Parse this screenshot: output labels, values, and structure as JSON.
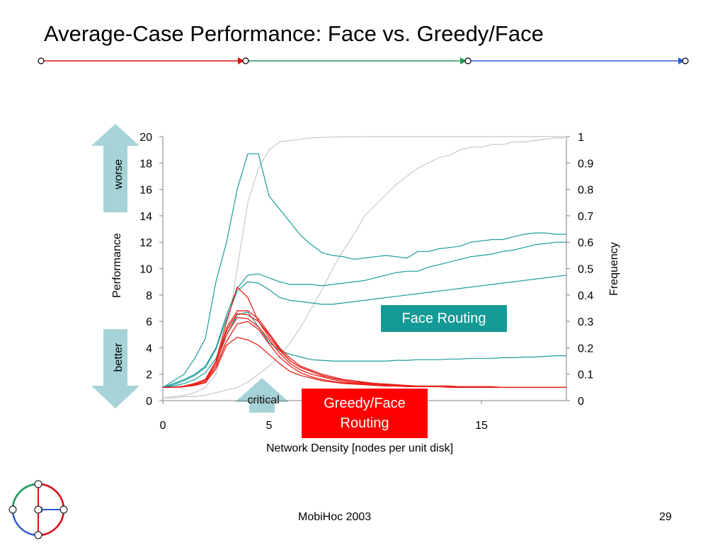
{
  "slide": {
    "title": "Average-Case Performance: Face vs. Greedy/Face",
    "footer_center": "MobiHoc 2003",
    "page_number": "29"
  },
  "colors": {
    "face_series": "#1a9c9a",
    "greedy_series": "#e8221a",
    "frequency_series": "#c8c8c8",
    "arrow_fill": "#a6d3d8",
    "face_box": "#149a96",
    "greedy_box": "#ff0000",
    "header_red": "#e01010",
    "header_green": "#1e9a5a",
    "header_blue": "#2f5bd0"
  },
  "annotations": {
    "worse": "worse",
    "better": "better",
    "critical": "critical",
    "face_box": "Face Routing",
    "greedy_box_line1": "Greedy/Face",
    "greedy_box_line2": "Routing"
  },
  "icons": [
    "logo-graph-icon",
    "arrow-up-icon",
    "arrow-down-icon",
    "arrow-right-icon"
  ],
  "chart_data": {
    "type": "line",
    "xlabel": "Network Density [nodes per unit disk]",
    "ylabel": "Performance",
    "y2label": "Frequency",
    "xlim": [
      0,
      19
    ],
    "ylim": [
      0,
      20
    ],
    "y2lim": [
      0,
      1
    ],
    "x_ticks": [
      0,
      5,
      10,
      15
    ],
    "y_ticks": [
      0,
      2,
      4,
      6,
      8,
      10,
      12,
      14,
      16,
      18,
      20
    ],
    "y2_ticks": [
      "0",
      "0.1",
      "0.2",
      "0.3",
      "0.4",
      "0.5",
      "0.6",
      "0.7",
      "0.8",
      "0.9",
      "1"
    ],
    "x": [
      0,
      0.5,
      1,
      1.5,
      2,
      2.5,
      3,
      3.5,
      4,
      4.5,
      5,
      5.5,
      6,
      6.5,
      7,
      7.5,
      8,
      8.5,
      9,
      9.5,
      10,
      10.5,
      11,
      11.5,
      12,
      12.5,
      13,
      13.5,
      14,
      14.5,
      15,
      15.5,
      16,
      16.5,
      17,
      17.5,
      18,
      18.5,
      19
    ],
    "face_series": [
      [
        1,
        1.5,
        2,
        3.2,
        4.7,
        9,
        12,
        16,
        18.7,
        18.7,
        15.5,
        14.5,
        13.5,
        12.5,
        11.8,
        11.2,
        11,
        10.9,
        10.7,
        10.8,
        10.9,
        11,
        10.9,
        10.8,
        11.3,
        11.3,
        11.5,
        11.6,
        11.7,
        12,
        12.1,
        12.2,
        12.2,
        12.4,
        12.6,
        12.7,
        12.7,
        12.6,
        12.6
      ],
      [
        1,
        1.3,
        1.6,
        2,
        2.6,
        4,
        6.5,
        8.5,
        9.5,
        9.6,
        9.3,
        9,
        8.8,
        8.8,
        8.8,
        8.7,
        8.8,
        8.9,
        9,
        9.1,
        9.3,
        9.5,
        9.7,
        9.8,
        9.8,
        10.1,
        10.3,
        10.5,
        10.7,
        10.9,
        11,
        11.1,
        11.3,
        11.4,
        11.6,
        11.8,
        11.9,
        12,
        12
      ],
      [
        1,
        1.2,
        1.5,
        1.9,
        2.5,
        3.9,
        6.2,
        8.3,
        9,
        8.9,
        8.4,
        7.8,
        7.6,
        7.5,
        7.4,
        7.3,
        7.3,
        7.4,
        7.5,
        7.6,
        7.7,
        7.8,
        7.9,
        8,
        8.1,
        8.2,
        8.3,
        8.4,
        8.5,
        8.6,
        8.7,
        8.8,
        8.9,
        9,
        9.1,
        9.2,
        9.3,
        9.4,
        9.5
      ],
      [
        1,
        1.1,
        1.3,
        1.6,
        2.1,
        3.2,
        5,
        6.5,
        6.7,
        5.6,
        4.4,
        3.8,
        3.5,
        3.3,
        3.1,
        3.05,
        3,
        3,
        3,
        3,
        3,
        3,
        3.05,
        3.05,
        3.1,
        3.1,
        3.1,
        3.15,
        3.15,
        3.2,
        3.2,
        3.2,
        3.25,
        3.25,
        3.3,
        3.3,
        3.35,
        3.4,
        3.4
      ]
    ],
    "greedy_series": [
      [
        1,
        1,
        1.1,
        1.3,
        1.6,
        3,
        6,
        8.6,
        7.8,
        6,
        4.8,
        3.8,
        3,
        2.5,
        2.2,
        1.9,
        1.7,
        1.55,
        1.45,
        1.35,
        1.3,
        1.25,
        1.2,
        1.15,
        1.1,
        1.1,
        1.1,
        1.1,
        1.05,
        1.05,
        1.05,
        1.05,
        1,
        1,
        1,
        1,
        1,
        1,
        1
      ],
      [
        1,
        1,
        1.1,
        1.3,
        1.6,
        3,
        5.5,
        6.8,
        6.8,
        6.2,
        5.1,
        4,
        3.2,
        2.6,
        2.3,
        2,
        1.8,
        1.6,
        1.5,
        1.4,
        1.3,
        1.25,
        1.2,
        1.15,
        1.1,
        1.1,
        1.1,
        1.1,
        1.05,
        1.05,
        1.05,
        1.05,
        1,
        1,
        1,
        1,
        1,
        1,
        1
      ],
      [
        1,
        1,
        1.1,
        1.3,
        1.6,
        3,
        5.3,
        6.6,
        6.5,
        6,
        5,
        3.9,
        3,
        2.5,
        2.2,
        1.9,
        1.7,
        1.55,
        1.45,
        1.35,
        1.3,
        1.25,
        1.2,
        1.15,
        1.1,
        1.1,
        1.1,
        1.1,
        1.05,
        1.05,
        1.05,
        1.05,
        1,
        1,
        1,
        1,
        1,
        1,
        1
      ],
      [
        1,
        1,
        1.1,
        1.25,
        1.5,
        2.8,
        5,
        6.3,
        6.2,
        5.6,
        4.6,
        3.6,
        2.8,
        2.3,
        2,
        1.8,
        1.6,
        1.45,
        1.35,
        1.3,
        1.25,
        1.2,
        1.15,
        1.1,
        1.1,
        1.05,
        1.05,
        1.05,
        1.05,
        1,
        1,
        1,
        1,
        1,
        1,
        1,
        1,
        1,
        1
      ],
      [
        1,
        1,
        1.05,
        1.2,
        1.4,
        2.6,
        4.5,
        5.8,
        6,
        5.4,
        4.3,
        3.3,
        2.6,
        2.1,
        1.8,
        1.6,
        1.45,
        1.35,
        1.3,
        1.25,
        1.2,
        1.15,
        1.1,
        1.1,
        1.05,
        1.05,
        1.05,
        1.05,
        1,
        1,
        1,
        1,
        1,
        1,
        1,
        1,
        1,
        1,
        1
      ],
      [
        1,
        1,
        1.05,
        1.15,
        1.35,
        2.4,
        4.2,
        4.8,
        4.6,
        4.2,
        3.5,
        2.8,
        2.2,
        1.9,
        1.7,
        1.5,
        1.4,
        1.3,
        1.25,
        1.2,
        1.15,
        1.1,
        1.1,
        1.05,
        1.05,
        1.05,
        1.05,
        1,
        1,
        1,
        1,
        1,
        1,
        1,
        1,
        1,
        1,
        1,
        1
      ]
    ],
    "frequency_series": [
      [
        0.01,
        0.015,
        0.02,
        0.03,
        0.05,
        0.1,
        0.25,
        0.5,
        0.75,
        0.88,
        0.95,
        0.98,
        0.985,
        0.99,
        0.995,
        0.997,
        0.998,
        0.999,
        0.999,
        1,
        1,
        1,
        1,
        1,
        1,
        1,
        1,
        1,
        1,
        1,
        1,
        1,
        1,
        1,
        1,
        1,
        1,
        1,
        1
      ],
      [
        0.01,
        0.01,
        0.015,
        0.015,
        0.02,
        0.03,
        0.04,
        0.05,
        0.07,
        0.1,
        0.13,
        0.17,
        0.22,
        0.28,
        0.35,
        0.42,
        0.5,
        0.57,
        0.63,
        0.7,
        0.74,
        0.78,
        0.82,
        0.85,
        0.88,
        0.9,
        0.92,
        0.93,
        0.95,
        0.96,
        0.96,
        0.97,
        0.97,
        0.98,
        0.98,
        0.985,
        0.99,
        0.995,
        0.995
      ]
    ]
  }
}
